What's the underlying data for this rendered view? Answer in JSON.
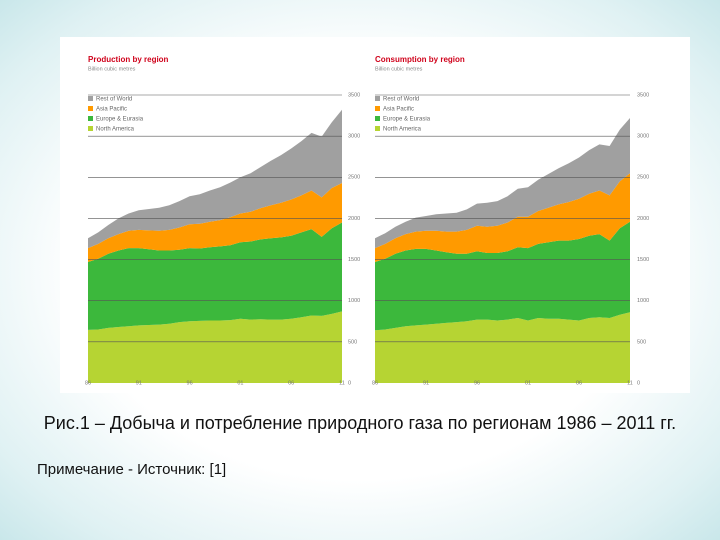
{
  "chart_data": [
    {
      "type": "stacked-area",
      "title": "Production by region",
      "subtitle": "Billion cubic metres",
      "x": [
        1986,
        1987,
        1988,
        1989,
        1990,
        1991,
        1992,
        1993,
        1994,
        1995,
        1996,
        1997,
        1998,
        1999,
        2000,
        2001,
        2002,
        2003,
        2004,
        2005,
        2006,
        2007,
        2008,
        2009,
        2010,
        2011
      ],
      "series": [
        {
          "name": "North America",
          "color": "#b6d433",
          "values": [
            645,
            650,
            670,
            680,
            690,
            700,
            705,
            710,
            720,
            740,
            750,
            755,
            760,
            760,
            765,
            780,
            770,
            775,
            770,
            770,
            780,
            800,
            820,
            815,
            840,
            870
          ]
        },
        {
          "name": "Europe & Eurasia",
          "color": "#3cb83c",
          "values": [
            825,
            860,
            900,
            930,
            950,
            940,
            920,
            900,
            890,
            880,
            890,
            880,
            890,
            900,
            910,
            930,
            950,
            970,
            990,
            1000,
            1010,
            1030,
            1050,
            960,
            1040,
            1080
          ]
        },
        {
          "name": "Asia Pacific",
          "color": "#ff9a00",
          "values": [
            170,
            180,
            190,
            200,
            210,
            220,
            230,
            240,
            250,
            270,
            290,
            300,
            310,
            320,
            340,
            350,
            360,
            380,
            400,
            420,
            440,
            450,
            470,
            480,
            490,
            480
          ]
        },
        {
          "name": "Rest of World",
          "color": "#a0a0a0",
          "values": [
            120,
            140,
            160,
            190,
            210,
            240,
            260,
            280,
            300,
            320,
            340,
            360,
            380,
            400,
            420,
            440,
            470,
            500,
            540,
            580,
            620,
            660,
            700,
            740,
            800,
            890
          ]
        }
      ],
      "ylim": [
        0,
        3500
      ],
      "yticks": [
        0,
        500,
        1000,
        1500,
        2000,
        2500,
        3000,
        3500
      ],
      "xlim": [
        1986,
        2011
      ],
      "xticks": [
        {
          "value": 1986,
          "label": "86"
        },
        {
          "value": 1991,
          "label": "91"
        },
        {
          "value": 1996,
          "label": "96"
        },
        {
          "value": 2001,
          "label": "01"
        },
        {
          "value": 2006,
          "label": "06"
        },
        {
          "value": 2011,
          "label": "11"
        }
      ],
      "grid": true
    },
    {
      "type": "stacked-area",
      "title": "Consumption by region",
      "subtitle": "Billion cubic metres",
      "x": [
        1986,
        1987,
        1988,
        1989,
        1990,
        1991,
        1992,
        1993,
        1994,
        1995,
        1996,
        1997,
        1998,
        1999,
        2000,
        2001,
        2002,
        2003,
        2004,
        2005,
        2006,
        2007,
        2008,
        2009,
        2010,
        2011
      ],
      "series": [
        {
          "name": "North America",
          "color": "#b6d433",
          "values": [
            640,
            650,
            670,
            690,
            700,
            710,
            720,
            730,
            740,
            750,
            770,
            770,
            760,
            770,
            790,
            760,
            790,
            780,
            780,
            770,
            760,
            790,
            800,
            790,
            830,
            860
          ]
        },
        {
          "name": "Europe & Eurasia",
          "color": "#3cb83c",
          "values": [
            830,
            860,
            900,
            920,
            930,
            920,
            890,
            860,
            830,
            820,
            830,
            810,
            820,
            830,
            860,
            880,
            900,
            930,
            950,
            960,
            990,
            1000,
            1010,
            940,
            1050,
            1100
          ]
        },
        {
          "name": "Asia Pacific",
          "color": "#ff9a00",
          "values": [
            170,
            180,
            190,
            200,
            210,
            220,
            240,
            250,
            270,
            290,
            310,
            320,
            330,
            350,
            370,
            380,
            400,
            420,
            440,
            470,
            490,
            510,
            530,
            550,
            570,
            590
          ]
        },
        {
          "name": "Rest of World",
          "color": "#a0a0a0",
          "values": [
            120,
            130,
            140,
            150,
            170,
            180,
            200,
            220,
            230,
            250,
            270,
            290,
            300,
            320,
            340,
            360,
            380,
            410,
            440,
            470,
            500,
            530,
            560,
            600,
            630,
            670
          ]
        }
      ],
      "ylim": [
        0,
        3500
      ],
      "yticks": [
        0,
        500,
        1000,
        1500,
        2000,
        2500,
        3000,
        3500
      ],
      "xlim": [
        1986,
        2011
      ],
      "xticks": [
        {
          "value": 1986,
          "label": "86"
        },
        {
          "value": 1991,
          "label": "91"
        },
        {
          "value": 1996,
          "label": "96"
        },
        {
          "value": 2001,
          "label": "01"
        },
        {
          "value": 2006,
          "label": "06"
        },
        {
          "value": 2011,
          "label": "11"
        }
      ],
      "grid": true
    }
  ],
  "caption": "Рис.1 – Добыча и потребление природного газа по регионам 1986 – 2011 гг.",
  "note": "Примечание - Источник: [1]"
}
